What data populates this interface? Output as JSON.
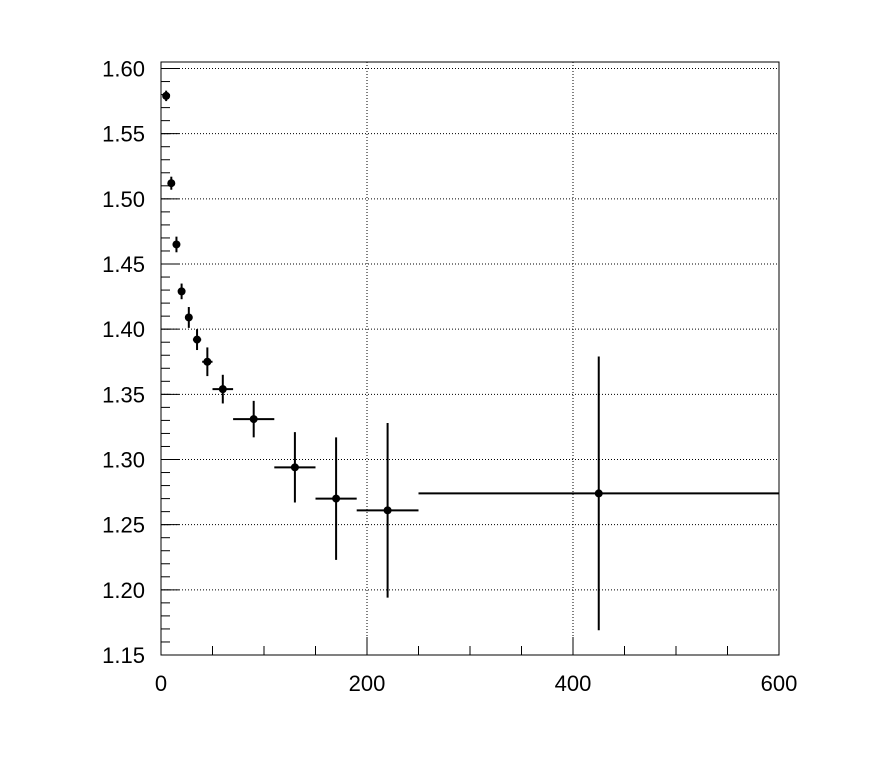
{
  "chart_data": {
    "type": "scatter",
    "title": "",
    "xlabel": "",
    "ylabel": "",
    "xlim": [
      0,
      600
    ],
    "ylim": [
      1.15,
      1.605
    ],
    "grid": true,
    "x_ticks": [
      "0",
      "200",
      "400",
      "600"
    ],
    "y_ticks": [
      "1.15",
      "1.20",
      "1.25",
      "1.30",
      "1.35",
      "1.40",
      "1.45",
      "1.50",
      "1.55",
      "1.60"
    ],
    "series": [
      {
        "marker_color": "#000000",
        "points": [
          {
            "x": 5,
            "xerr": 2.5,
            "y": 1.579,
            "yerr": 0.004
          },
          {
            "x": 10,
            "xerr": 2.5,
            "y": 1.512,
            "yerr": 0.005
          },
          {
            "x": 15,
            "xerr": 2.5,
            "y": 1.465,
            "yerr": 0.006
          },
          {
            "x": 20,
            "xerr": 2.5,
            "y": 1.429,
            "yerr": 0.006
          },
          {
            "x": 27,
            "xerr": 3.5,
            "y": 1.409,
            "yerr": 0.008
          },
          {
            "x": 35,
            "xerr": 4,
            "y": 1.392,
            "yerr": 0.008
          },
          {
            "x": 45,
            "xerr": 5,
            "y": 1.375,
            "yerr": 0.011
          },
          {
            "x": 60,
            "xerr": 10,
            "y": 1.354,
            "yerr": 0.011
          },
          {
            "x": 90,
            "xerr": 20,
            "y": 1.331,
            "yerr": 0.014
          },
          {
            "x": 130,
            "xerr": 20,
            "y": 1.294,
            "yerr": 0.027
          },
          {
            "x": 170,
            "xerr": 20,
            "y": 1.27,
            "yerr": 0.047
          },
          {
            "x": 220,
            "xerr": 30,
            "y": 1.261,
            "yerr": 0.067
          },
          {
            "x": 425,
            "xerr": 175,
            "y": 1.274,
            "yerr": 0.105
          }
        ]
      }
    ]
  }
}
